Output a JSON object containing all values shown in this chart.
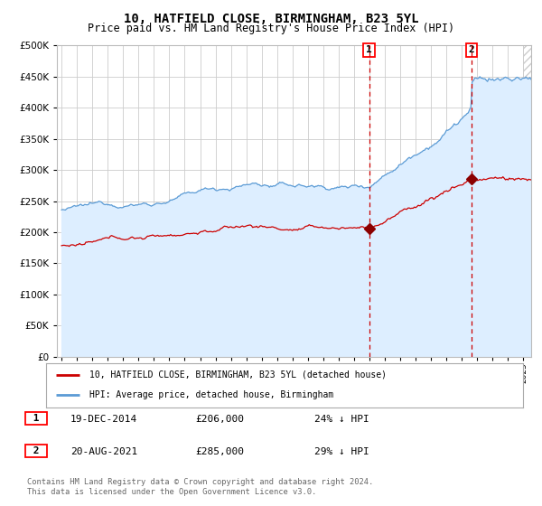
{
  "title": "10, HATFIELD CLOSE, BIRMINGHAM, B23 5YL",
  "subtitle": "Price paid vs. HM Land Registry's House Price Index (HPI)",
  "title_fontsize": 10,
  "subtitle_fontsize": 8.5,
  "hpi_color": "#5b9bd5",
  "hpi_fill_color": "#ddeeff",
  "price_color": "#cc0000",
  "marker_color": "#8b0000",
  "sale1_date_num": 2014.97,
  "sale1_price": 206000,
  "sale2_date_num": 2021.64,
  "sale2_price": 285000,
  "legend_label1": "10, HATFIELD CLOSE, BIRMINGHAM, B23 5YL (detached house)",
  "legend_label2": "HPI: Average price, detached house, Birmingham",
  "note1_date": "19-DEC-2014",
  "note1_price": "£206,000",
  "note1_pct": "24% ↓ HPI",
  "note2_date": "20-AUG-2021",
  "note2_price": "£285,000",
  "note2_pct": "29% ↓ HPI",
  "footer": "Contains HM Land Registry data © Crown copyright and database right 2024.\nThis data is licensed under the Open Government Licence v3.0.",
  "bg_color": "#ffffff",
  "plot_bg_color": "#ffffff",
  "grid_color": "#cccccc"
}
